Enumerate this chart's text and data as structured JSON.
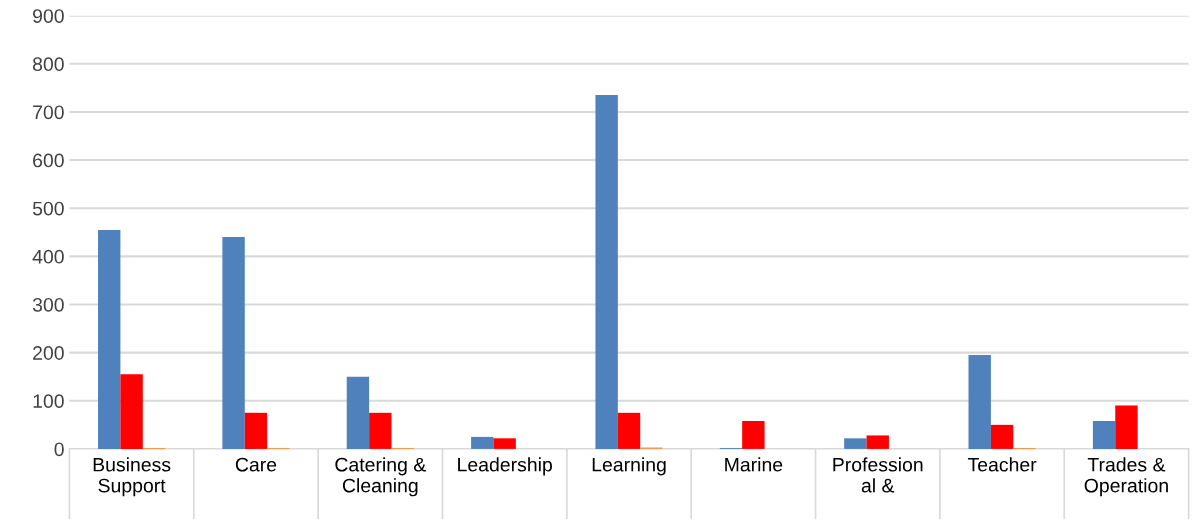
{
  "chart_data": {
    "type": "bar",
    "categories": [
      "Business\nSupport",
      "Care",
      "Catering &\nCleaning",
      "Leadership",
      "Learning",
      "Marine",
      "Profession\nal &",
      "Teacher",
      "Trades &\nOperation"
    ],
    "series": [
      {
        "color": "#4f81bd",
        "values": [
          455,
          440,
          150,
          25,
          735,
          2,
          22,
          195,
          58
        ]
      },
      {
        "color": "#ff0000",
        "values": [
          155,
          75,
          75,
          22,
          75,
          58,
          28,
          50,
          90
        ]
      },
      {
        "color": "#f79646",
        "values": [
          2,
          2,
          2,
          null,
          3,
          null,
          null,
          2,
          null
        ]
      }
    ],
    "ylim": [
      0,
      900
    ],
    "yticks": [
      0,
      100,
      200,
      300,
      400,
      500,
      600,
      700,
      800,
      900
    ],
    "grid": "y",
    "legend": false
  }
}
